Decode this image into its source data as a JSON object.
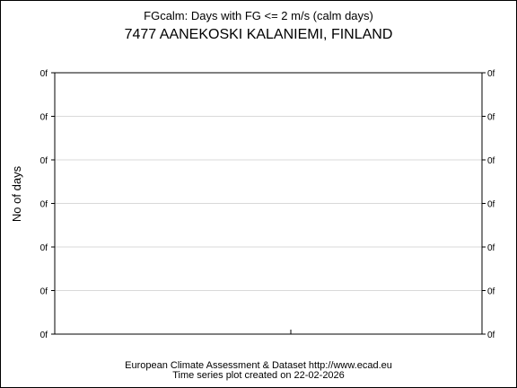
{
  "chart_data": {
    "type": "line",
    "subtitle": "FGcalm: Days with FG <= 2 m/s (calm days)",
    "title": "7477 AANEKOSKI KALANIEMI, FINLAND",
    "ylabel": "No of days",
    "xlabel": "",
    "yticks": [
      "0f",
      "0f",
      "0f",
      "0f",
      "0f",
      "0f",
      "0f"
    ],
    "grid": true,
    "series": [],
    "footer_line1": "European Climate Assessment & Dataset  http://www.ecad.eu",
    "footer_line2": "Time series plot created on 22-02-2026"
  },
  "colors": {
    "axis": "#000000",
    "grid": "#d9d9d9",
    "background": "#ffffff"
  }
}
